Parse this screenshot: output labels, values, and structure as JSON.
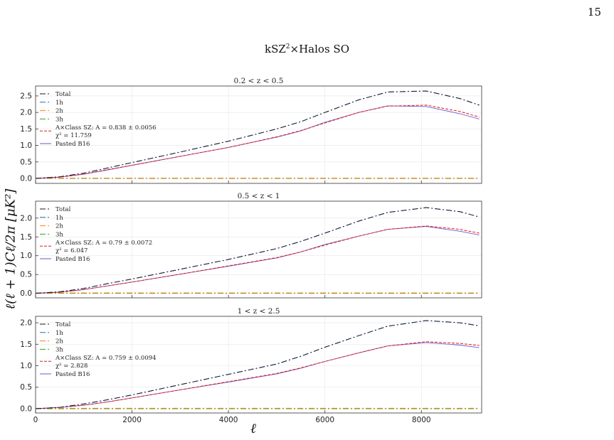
{
  "page_number": "15",
  "figure": {
    "title_main": "kSZ",
    "title_sup": "2",
    "title_rest": "×Halos SO",
    "ylabel": "ℓ(ℓ + 1)Cℓ/2π   [μK²]",
    "xlabel": "ℓ"
  },
  "chart_data": [
    {
      "type": "line",
      "title": "0.2 < z < 0.5",
      "x": [
        0,
        500,
        1000,
        1500,
        2000,
        3000,
        4000,
        5000,
        5500,
        6000,
        6700,
        7300,
        8100,
        8800,
        9200
      ],
      "ylim": [
        -0.15,
        2.8
      ],
      "yticks": [
        0.0,
        0.5,
        1.0,
        1.5,
        2.0,
        2.5
      ],
      "series": [
        {
          "name": "Total",
          "color": "#1a1a2e",
          "dash": "8,3,2,3",
          "values": [
            0.0,
            0.05,
            0.16,
            0.32,
            0.48,
            0.8,
            1.13,
            1.5,
            1.72,
            2.0,
            2.38,
            2.62,
            2.65,
            2.42,
            2.22
          ]
        },
        {
          "name": "1h",
          "color": "#1f77b4",
          "dash": "8,3,2,3",
          "values": [
            0.0,
            0.05,
            0.16,
            0.32,
            0.48,
            0.8,
            1.13,
            1.5,
            1.72,
            2.0,
            2.38,
            2.62,
            2.65,
            2.42,
            2.22
          ]
        },
        {
          "name": "2h",
          "color": "#ff7f0e",
          "dash": "8,3,2,3",
          "values": [
            0.01,
            0.01,
            0.01,
            0.01,
            0.01,
            0.01,
            0.01,
            0.01,
            0.01,
            0.01,
            0.01,
            0.01,
            0.01,
            0.01,
            0.01
          ]
        },
        {
          "name": "3h",
          "color": "#2ca02c",
          "dash": "8,3,2,3",
          "values": [
            0.0,
            0.0,
            0.0,
            0.0,
            0.0,
            0.0,
            0.0,
            0.0,
            0.0,
            0.0,
            0.0,
            0.0,
            0.0,
            0.0,
            0.0
          ]
        },
        {
          "name": "A×Class SZ: A = 0.838 ± 0.0056",
          "name2": "χ² = 11.759",
          "color": "#e41a1c",
          "dash": "4,2",
          "values": [
            0.0,
            0.04,
            0.13,
            0.27,
            0.4,
            0.67,
            0.94,
            1.26,
            1.45,
            1.68,
            2.0,
            2.19,
            2.22,
            2.03,
            1.86
          ]
        },
        {
          "name": "Pasted B16",
          "color": "#6a5acd",
          "dash": "",
          "values": [
            0.0,
            0.04,
            0.13,
            0.26,
            0.4,
            0.67,
            0.94,
            1.25,
            1.44,
            1.7,
            2.0,
            2.2,
            2.18,
            1.96,
            1.8
          ]
        }
      ]
    },
    {
      "type": "line",
      "title": "0.5 < z < 1",
      "x": [
        0,
        500,
        1000,
        1500,
        2000,
        3000,
        4000,
        5000,
        5500,
        6000,
        6700,
        7300,
        8100,
        8800,
        9200
      ],
      "ylim": [
        -0.12,
        2.45
      ],
      "yticks": [
        0.0,
        0.5,
        1.0,
        1.5,
        2.0
      ],
      "series": [
        {
          "name": "Total",
          "color": "#1a1a2e",
          "dash": "8,3,2,3",
          "values": [
            0.0,
            0.04,
            0.13,
            0.26,
            0.38,
            0.64,
            0.9,
            1.19,
            1.38,
            1.6,
            1.92,
            2.15,
            2.28,
            2.17,
            2.03
          ]
        },
        {
          "name": "1h",
          "color": "#1f77b4",
          "dash": "8,3,2,3",
          "values": [
            0.0,
            0.04,
            0.13,
            0.26,
            0.38,
            0.64,
            0.9,
            1.19,
            1.38,
            1.6,
            1.92,
            2.15,
            2.28,
            2.17,
            2.03
          ]
        },
        {
          "name": "2h",
          "color": "#ff7f0e",
          "dash": "8,3,2,3",
          "values": [
            0.01,
            0.01,
            0.01,
            0.01,
            0.01,
            0.01,
            0.01,
            0.01,
            0.01,
            0.01,
            0.01,
            0.01,
            0.01,
            0.01,
            0.01
          ]
        },
        {
          "name": "3h",
          "color": "#2ca02c",
          "dash": "8,3,2,3",
          "values": [
            0.0,
            0.0,
            0.0,
            0.0,
            0.0,
            0.0,
            0.0,
            0.0,
            0.0,
            0.0,
            0.0,
            0.0,
            0.0,
            0.0,
            0.0
          ]
        },
        {
          "name": "A×Class SZ: A = 0.79 ± 0.0072",
          "name2": "χ² = 6.047",
          "color": "#e41a1c",
          "dash": "4,2",
          "values": [
            0.0,
            0.03,
            0.1,
            0.2,
            0.3,
            0.51,
            0.73,
            0.95,
            1.1,
            1.28,
            1.52,
            1.7,
            1.79,
            1.7,
            1.6
          ]
        },
        {
          "name": "Pasted B16",
          "color": "#6a5acd",
          "dash": "",
          "values": [
            0.0,
            0.03,
            0.1,
            0.2,
            0.3,
            0.51,
            0.72,
            0.94,
            1.1,
            1.3,
            1.52,
            1.7,
            1.78,
            1.65,
            1.55
          ]
        }
      ]
    },
    {
      "type": "line",
      "title": "1 < z < 2.5",
      "x": [
        0,
        500,
        1000,
        1500,
        2000,
        3000,
        4000,
        5000,
        5500,
        6000,
        6700,
        7300,
        8100,
        8800,
        9200
      ],
      "ylim": [
        -0.1,
        2.15
      ],
      "yticks": [
        0.0,
        0.5,
        1.0,
        1.5,
        2.0
      ],
      "series": [
        {
          "name": "Total",
          "color": "#1a1a2e",
          "dash": "8,3,2,3",
          "values": [
            0.0,
            0.03,
            0.11,
            0.21,
            0.32,
            0.56,
            0.8,
            1.04,
            1.22,
            1.43,
            1.7,
            1.92,
            2.05,
            2.0,
            1.93
          ]
        },
        {
          "name": "1h",
          "color": "#1f77b4",
          "dash": "8,3,2,3",
          "values": [
            0.0,
            0.03,
            0.11,
            0.21,
            0.32,
            0.56,
            0.8,
            1.04,
            1.22,
            1.43,
            1.7,
            1.92,
            2.05,
            2.0,
            1.93
          ]
        },
        {
          "name": "2h",
          "color": "#ff7f0e",
          "dash": "8,3,2,3",
          "values": [
            0.01,
            0.01,
            0.01,
            0.01,
            0.01,
            0.01,
            0.01,
            0.01,
            0.01,
            0.01,
            0.01,
            0.01,
            0.01,
            0.01,
            0.01
          ]
        },
        {
          "name": "3h",
          "color": "#2ca02c",
          "dash": "8,3,2,3",
          "values": [
            0.0,
            0.0,
            0.0,
            0.0,
            0.0,
            0.0,
            0.0,
            0.0,
            0.0,
            0.0,
            0.0,
            0.0,
            0.0,
            0.0,
            0.0
          ]
        },
        {
          "name": "A×Class SZ: A = 0.759 ± 0.0094",
          "name2": "χ² = 2.828",
          "color": "#e41a1c",
          "dash": "4,2",
          "values": [
            0.0,
            0.03,
            0.08,
            0.16,
            0.25,
            0.44,
            0.63,
            0.82,
            0.95,
            1.1,
            1.3,
            1.46,
            1.56,
            1.52,
            1.47
          ]
        },
        {
          "name": "Pasted B16",
          "color": "#6a5acd",
          "dash": "",
          "values": [
            0.0,
            0.03,
            0.08,
            0.16,
            0.25,
            0.44,
            0.62,
            0.81,
            0.94,
            1.1,
            1.3,
            1.46,
            1.54,
            1.48,
            1.42
          ]
        }
      ]
    }
  ],
  "x_axis": {
    "xlim": [
      0,
      9250
    ],
    "xticks": [
      0,
      2000,
      4000,
      6000,
      8000
    ]
  }
}
